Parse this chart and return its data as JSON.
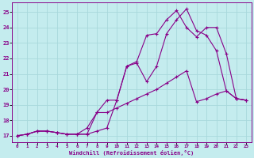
{
  "xlabel": "Windchill (Refroidissement éolien,°C)",
  "bg_color": "#c4ecee",
  "grid_color": "#a8d8dc",
  "line_color": "#880088",
  "x_ticks": [
    0,
    1,
    2,
    3,
    4,
    5,
    6,
    7,
    8,
    9,
    10,
    11,
    12,
    13,
    14,
    15,
    16,
    17,
    18,
    19,
    20,
    21,
    22,
    23
  ],
  "y_ticks": [
    17,
    18,
    19,
    20,
    21,
    22,
    23,
    24,
    25
  ],
  "xlim": [
    -0.5,
    23.5
  ],
  "ylim": [
    16.6,
    25.6
  ],
  "line1_x": [
    0,
    1,
    2,
    3,
    4,
    5,
    6,
    7,
    8,
    9,
    10,
    11,
    12,
    13,
    14,
    15,
    16,
    17,
    18,
    19,
    20,
    21,
    22,
    23
  ],
  "line1_y": [
    17.0,
    17.1,
    17.3,
    17.3,
    17.2,
    17.1,
    17.1,
    17.1,
    18.5,
    19.3,
    19.3,
    21.5,
    21.7,
    20.5,
    21.5,
    23.6,
    24.5,
    25.2,
    23.8,
    23.5,
    22.5,
    19.9,
    19.4,
    19.3
  ],
  "line2_x": [
    0,
    1,
    2,
    3,
    4,
    5,
    6,
    7,
    8,
    9,
    10,
    11,
    12,
    13,
    14,
    15,
    16,
    17,
    18,
    19,
    20,
    21,
    22,
    23
  ],
  "line2_y": [
    17.0,
    17.1,
    17.3,
    17.3,
    17.2,
    17.1,
    17.1,
    17.1,
    17.3,
    17.5,
    19.3,
    21.5,
    21.8,
    23.5,
    23.6,
    24.5,
    25.1,
    24.0,
    23.4,
    24.0,
    24.0,
    22.3,
    19.4,
    19.3
  ],
  "line3_x": [
    0,
    1,
    2,
    3,
    4,
    5,
    6,
    7,
    8,
    9,
    10,
    11,
    12,
    13,
    14,
    15,
    16,
    17,
    18,
    19,
    20,
    21,
    22,
    23
  ],
  "line3_y": [
    17.0,
    17.1,
    17.3,
    17.3,
    17.2,
    17.1,
    17.1,
    17.5,
    18.5,
    18.5,
    18.8,
    19.1,
    19.4,
    19.7,
    20.0,
    20.4,
    20.8,
    21.2,
    19.2,
    19.4,
    19.7,
    19.9,
    19.4,
    19.3
  ]
}
